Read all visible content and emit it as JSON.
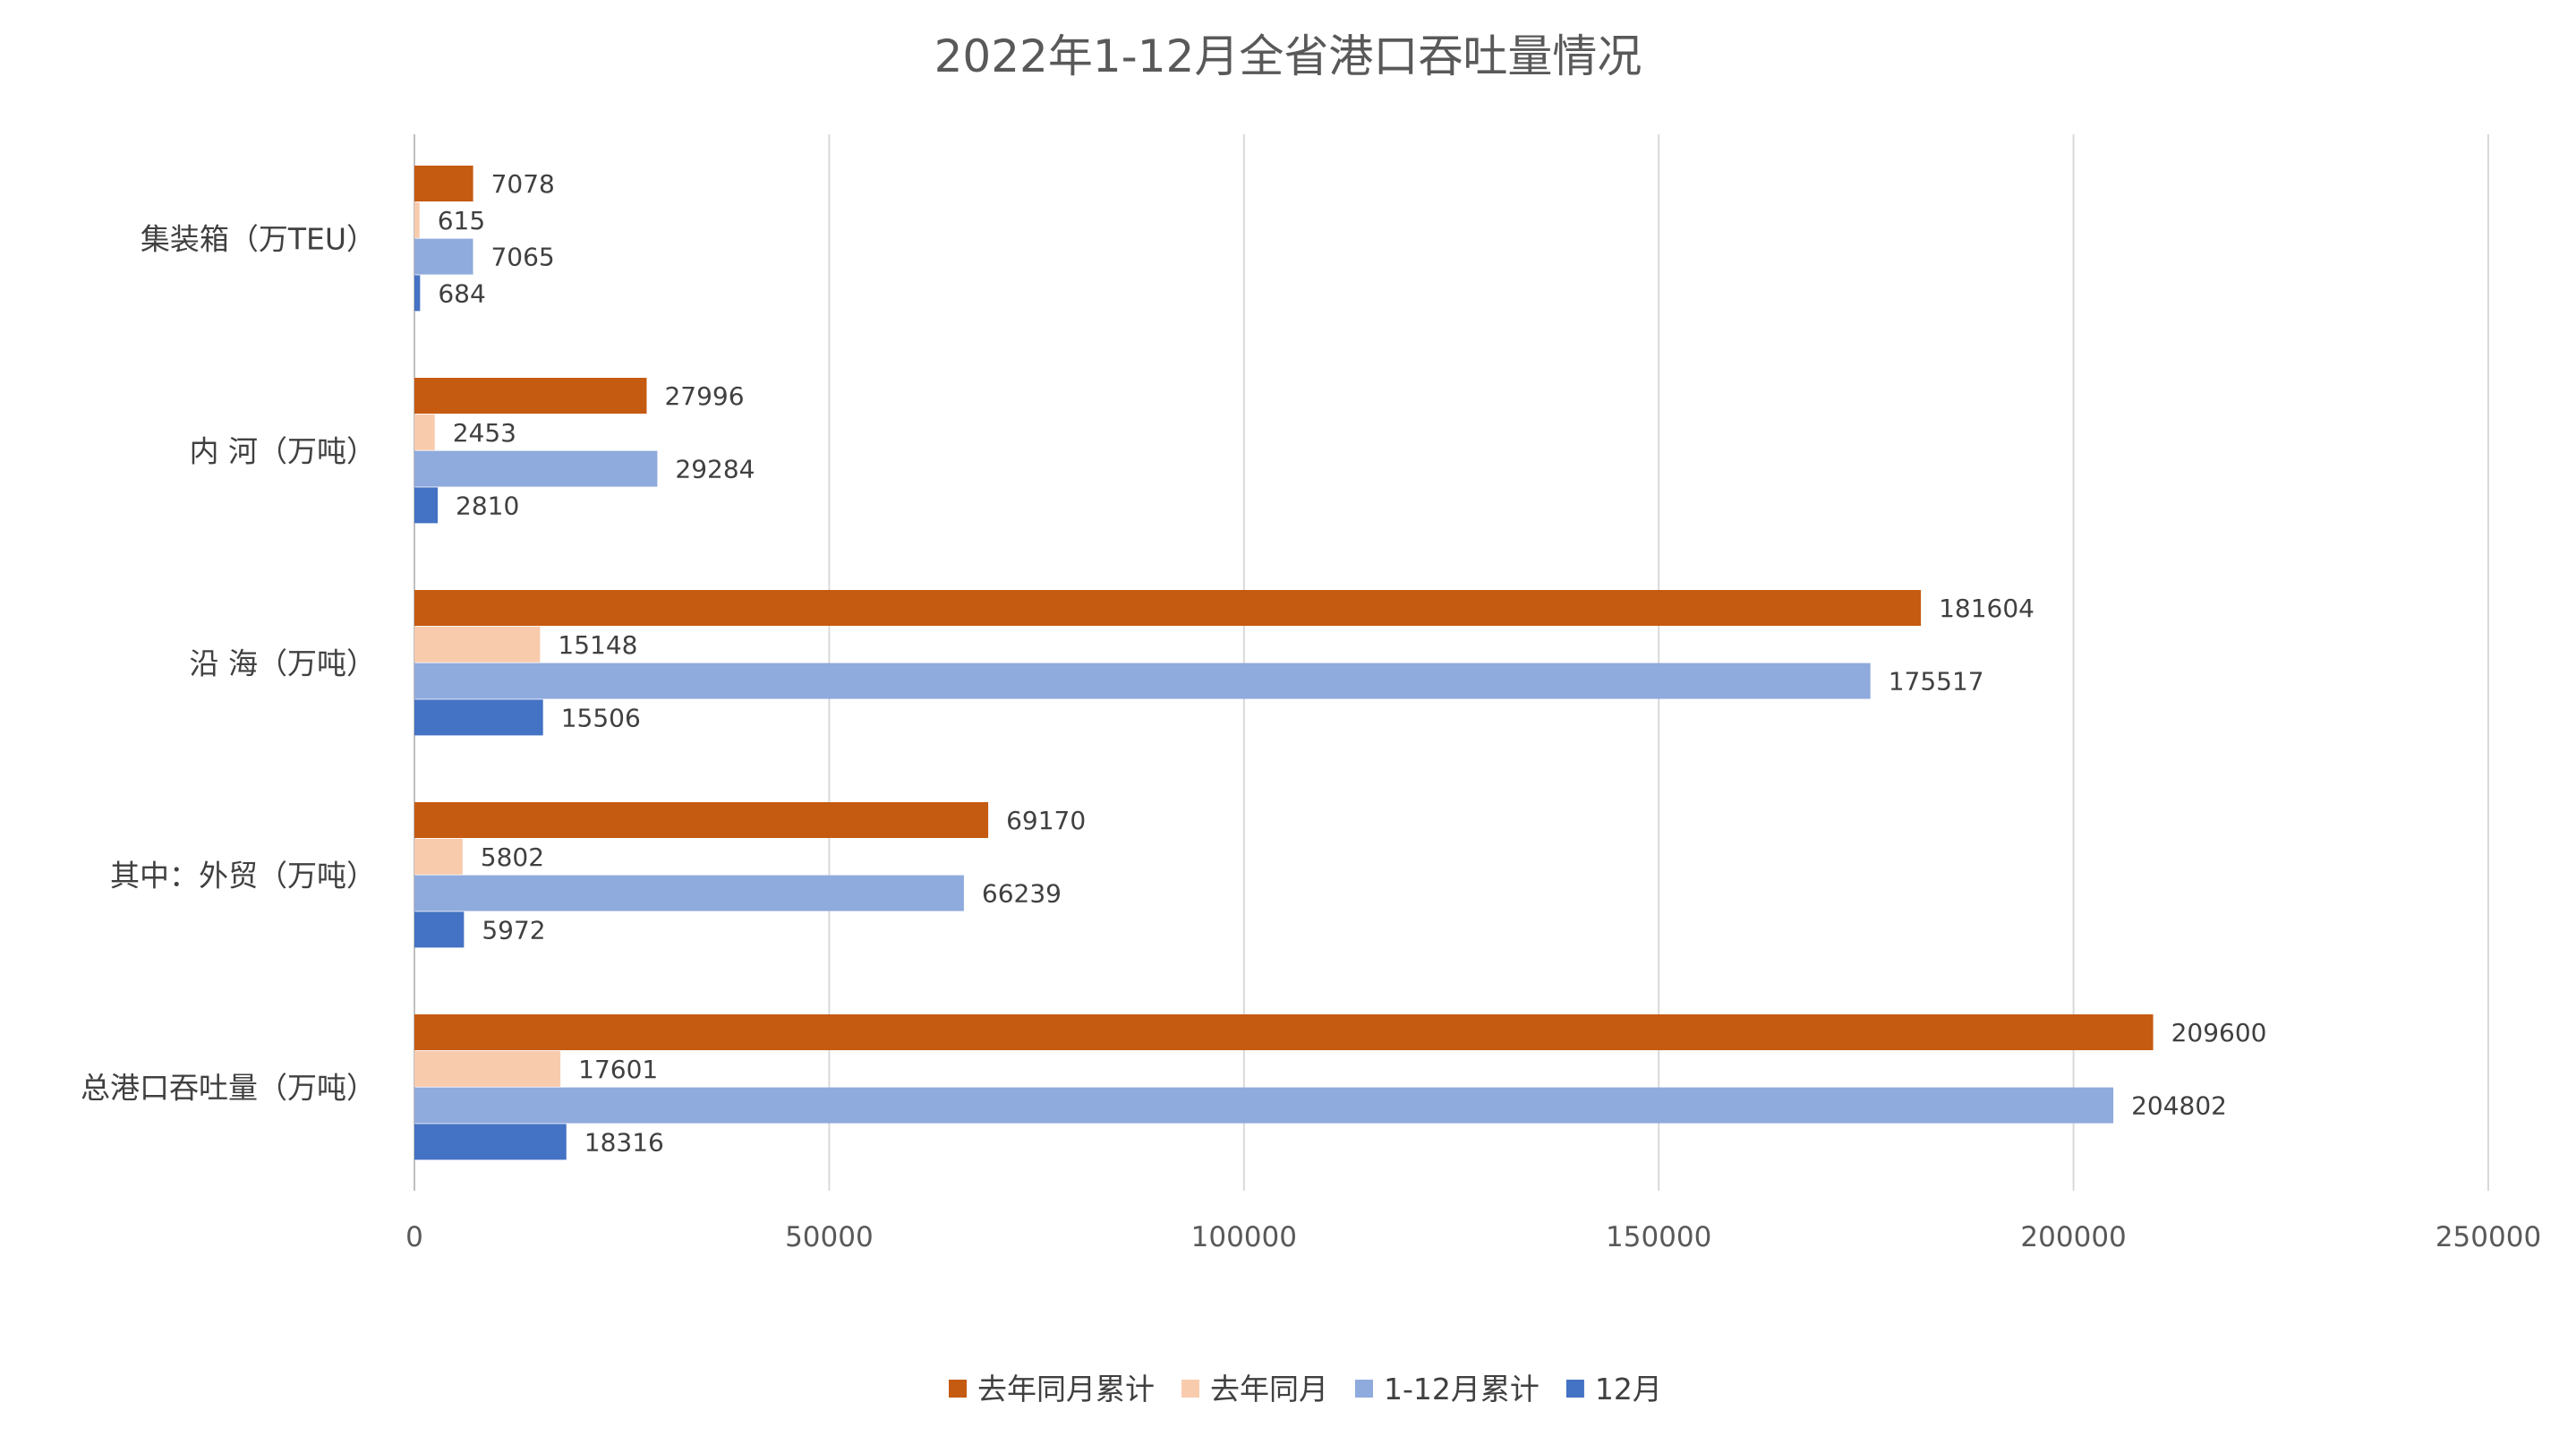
{
  "chart_data": {
    "type": "bar",
    "orientation": "horizontal",
    "title": "2022年1-12月全省港口吞吐量情况",
    "xlabel": "",
    "ylabel": "",
    "xlim": [
      0,
      250000
    ],
    "xticks": [
      "0",
      "50000",
      "100000",
      "150000",
      "200000",
      "250000"
    ],
    "grid": "vertical",
    "legend_position": "bottom",
    "categories": [
      "集装箱（万TEU）",
      "内  河（万吨）",
      "沿  海（万吨）",
      "其中：外贸（万吨）",
      "总港口吞吐量（万吨）"
    ],
    "series": [
      {
        "name": "去年同月累计",
        "color": "#C55A11",
        "values": [
          7078,
          27996,
          181604,
          69170,
          209600
        ]
      },
      {
        "name": "去年同月",
        "color": "#F8CBAD",
        "values": [
          615,
          2453,
          15148,
          5802,
          17601
        ]
      },
      {
        "name": "1-12月累计",
        "color": "#8FAADC",
        "values": [
          7065,
          29284,
          175517,
          66239,
          204802
        ]
      },
      {
        "name": "12月",
        "color": "#4472C4",
        "values": [
          684,
          2810,
          15506,
          5972,
          18316
        ]
      }
    ]
  }
}
